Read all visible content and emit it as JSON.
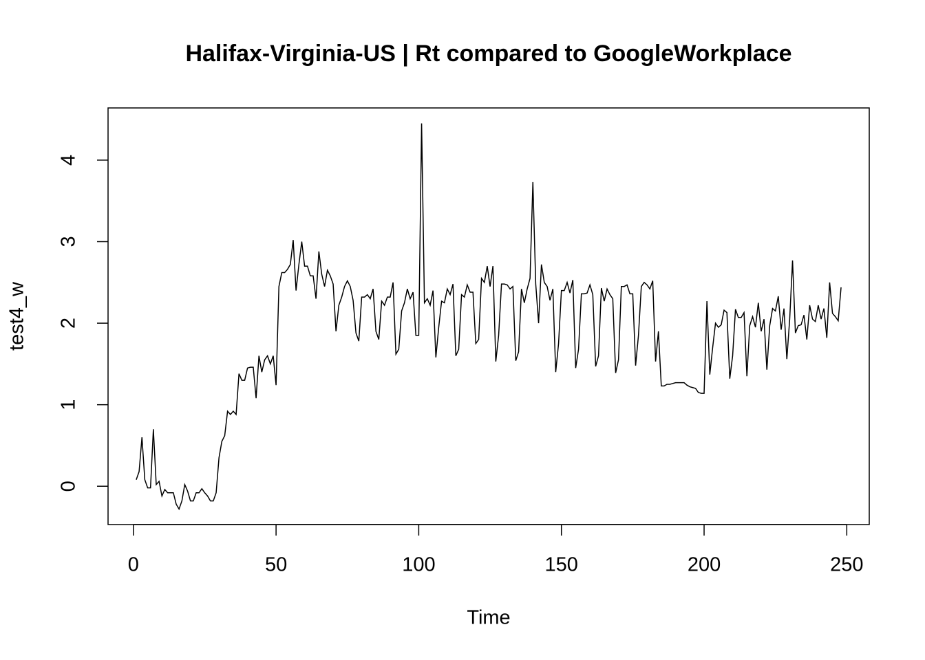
{
  "chart_data": {
    "type": "line",
    "title": "Halifax-Virginia-US | Rt compared to GoogleWorkplace",
    "xlabel": "Time",
    "ylabel": "test4_w",
    "color": "#000000",
    "x": [
      1,
      2,
      3,
      4,
      5,
      6,
      7,
      8,
      9,
      10,
      11,
      12,
      13,
      14,
      15,
      16,
      17,
      18,
      19,
      20,
      21,
      22,
      23,
      24,
      25,
      26,
      27,
      28,
      29,
      30,
      31,
      32,
      33,
      34,
      35,
      36,
      37,
      38,
      39,
      40,
      41,
      42,
      43,
      44,
      45,
      46,
      47,
      48,
      49,
      50,
      51,
      52,
      53,
      54,
      55,
      56,
      57,
      58,
      59,
      60,
      61,
      62,
      63,
      64,
      65,
      66,
      67,
      68,
      69,
      70,
      71,
      72,
      73,
      74,
      75,
      76,
      77,
      78,
      79,
      80,
      81,
      82,
      83,
      84,
      85,
      86,
      87,
      88,
      89,
      90,
      91,
      92,
      93,
      94,
      95,
      96,
      97,
      98,
      99,
      100,
      101,
      102,
      103,
      104,
      105,
      106,
      107,
      108,
      109,
      110,
      111,
      112,
      113,
      114,
      115,
      116,
      117,
      118,
      119,
      120,
      121,
      122,
      123,
      124,
      125,
      126,
      127,
      128,
      129,
      130,
      131,
      132,
      133,
      134,
      135,
      136,
      137,
      138,
      139,
      140,
      141,
      142,
      143,
      144,
      145,
      146,
      147,
      148,
      149,
      150,
      151,
      152,
      153,
      154,
      155,
      156,
      157,
      158,
      159,
      160,
      161,
      162,
      163,
      164,
      165,
      166,
      167,
      168,
      169,
      170,
      171,
      172,
      173,
      174,
      175,
      176,
      177,
      178,
      179,
      180,
      181,
      182,
      183,
      184,
      185,
      186,
      187,
      188,
      189,
      190,
      191,
      192,
      193,
      194,
      195,
      196,
      197,
      198,
      199,
      200,
      201,
      202,
      203,
      204,
      205,
      206,
      207,
      208,
      209,
      210,
      211,
      212,
      213,
      214,
      215,
      216,
      217,
      218,
      219,
      220,
      221,
      222,
      223,
      224,
      225,
      226,
      227,
      228,
      229,
      230,
      231,
      232,
      233,
      234,
      235,
      236,
      237,
      238,
      239,
      240,
      241,
      242,
      243,
      244,
      245,
      246,
      247,
      248
    ],
    "values": [
      0.08,
      0.18,
      0.6,
      0.08,
      -0.02,
      -0.02,
      0.7,
      0.02,
      0.06,
      -0.12,
      -0.04,
      -0.08,
      -0.08,
      -0.08,
      -0.22,
      -0.28,
      -0.18,
      0.02,
      -0.06,
      -0.18,
      -0.18,
      -0.08,
      -0.08,
      -0.03,
      -0.08,
      -0.12,
      -0.18,
      -0.18,
      -0.08,
      0.35,
      0.55,
      0.62,
      0.92,
      0.88,
      0.92,
      0.88,
      1.38,
      1.3,
      1.3,
      1.45,
      1.46,
      1.46,
      1.08,
      1.6,
      1.4,
      1.55,
      1.6,
      1.5,
      1.6,
      1.24,
      2.45,
      2.62,
      2.62,
      2.66,
      2.72,
      3.02,
      2.4,
      2.72,
      3.0,
      2.7,
      2.7,
      2.58,
      2.58,
      2.3,
      2.88,
      2.6,
      2.45,
      2.65,
      2.58,
      2.48,
      1.9,
      2.22,
      2.32,
      2.45,
      2.52,
      2.45,
      2.28,
      1.88,
      1.78,
      2.32,
      2.32,
      2.35,
      2.3,
      2.42,
      1.9,
      1.8,
      2.27,
      2.22,
      2.32,
      2.32,
      2.5,
      1.62,
      1.68,
      2.15,
      2.25,
      2.42,
      2.3,
      2.38,
      1.85,
      1.85,
      4.45,
      2.25,
      2.3,
      2.22,
      2.4,
      1.58,
      1.95,
      2.27,
      2.25,
      2.42,
      2.35,
      2.48,
      1.6,
      1.68,
      2.35,
      2.32,
      2.47,
      2.38,
      2.38,
      1.75,
      1.8,
      2.55,
      2.5,
      2.7,
      2.45,
      2.7,
      1.53,
      1.85,
      2.48,
      2.48,
      2.47,
      2.42,
      2.45,
      1.54,
      1.65,
      2.42,
      2.25,
      2.42,
      2.55,
      3.73,
      2.48,
      2.0,
      2.72,
      2.5,
      2.45,
      2.28,
      2.42,
      1.4,
      1.75,
      2.4,
      2.4,
      2.5,
      2.37,
      2.53,
      1.45,
      1.68,
      2.36,
      2.36,
      2.37,
      2.47,
      2.35,
      1.47,
      1.6,
      2.43,
      2.27,
      2.42,
      2.35,
      2.3,
      1.39,
      1.55,
      2.45,
      2.45,
      2.47,
      2.36,
      2.36,
      1.48,
      1.85,
      2.45,
      2.5,
      2.47,
      2.42,
      2.52,
      1.53,
      1.9,
      1.23,
      1.23,
      1.25,
      1.25,
      1.26,
      1.27,
      1.27,
      1.27,
      1.27,
      1.24,
      1.22,
      1.21,
      1.2,
      1.15,
      1.14,
      1.14,
      2.27,
      1.37,
      1.7,
      2.0,
      1.95,
      1.98,
      2.16,
      2.13,
      1.32,
      1.6,
      2.17,
      2.07,
      2.07,
      2.13,
      1.35,
      1.97,
      2.08,
      1.95,
      2.25,
      1.9,
      2.05,
      1.43,
      1.97,
      2.18,
      2.15,
      2.33,
      1.92,
      2.18,
      1.56,
      2.05,
      2.77,
      1.88,
      1.97,
      1.98,
      2.1,
      1.8,
      2.22,
      2.05,
      2.02,
      2.22,
      2.05,
      2.18,
      1.82,
      2.5,
      2.12,
      2.08,
      2.03,
      2.44
    ],
    "xlim": [
      -8.88,
      257.88
    ],
    "ylim": [
      -0.47,
      4.64
    ],
    "xticks": [
      0,
      50,
      100,
      150,
      200,
      250
    ],
    "yticks": [
      0,
      1,
      2,
      3,
      4
    ]
  }
}
